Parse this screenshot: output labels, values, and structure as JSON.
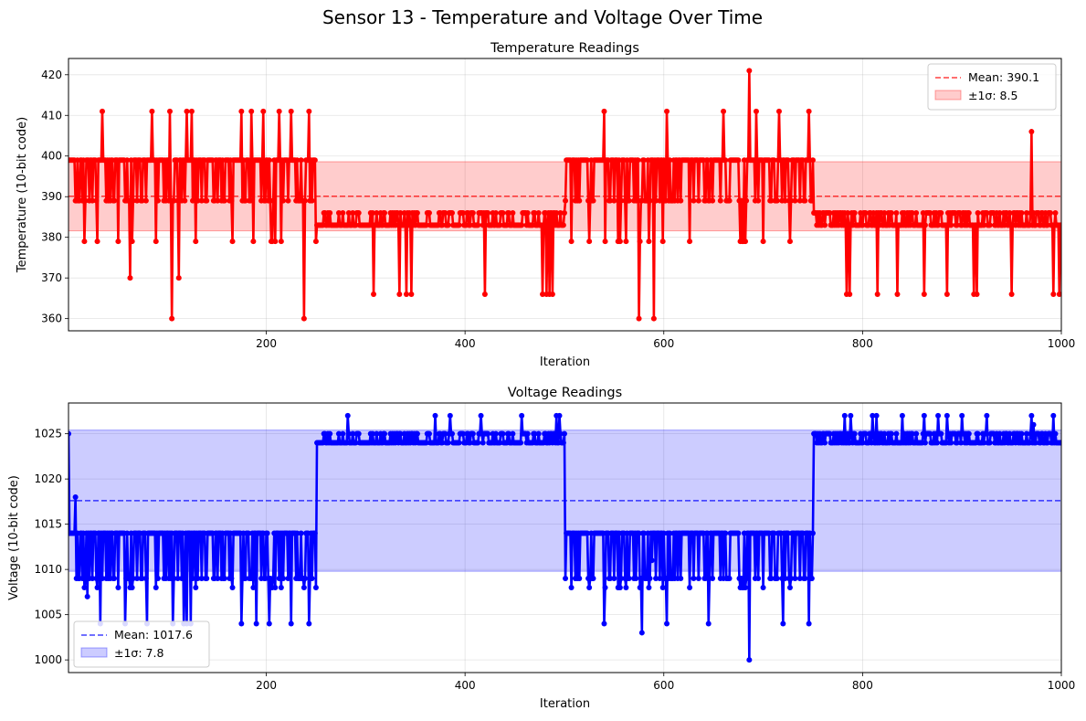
{
  "figure": {
    "title": "Sensor 13 - Temperature and Voltage Over Time"
  },
  "chart_data": [
    {
      "type": "line",
      "title": "Temperature Readings",
      "xlabel": "Iteration",
      "ylabel": "Temperature (10-bit code)",
      "xlim": [
        1,
        1000
      ],
      "ylim": [
        357,
        424
      ],
      "xticks": [
        200,
        400,
        600,
        800,
        1000
      ],
      "yticks": [
        360,
        370,
        380,
        390,
        400,
        410,
        420
      ],
      "grid": true,
      "legend_position": "top-right",
      "color": "#ff0000",
      "mean": 390.1,
      "std": 8.5,
      "legend": [
        "Mean: 390.1",
        "±1σ: 8.5"
      ],
      "series": [
        {
          "segments": [
            {
              "x_range": [
                1,
                250
              ],
              "base": 389,
              "high": 399,
              "low": 379,
              "extremes": [
                [
                  35,
                  411
                ],
                [
                  63,
                  370
                ],
                [
                  85,
                  411
                ],
                [
                  103,
                  411
                ],
                [
                  105,
                  360
                ],
                [
                  112,
                  370
                ],
                [
                  120,
                  411
                ],
                [
                  125,
                  411
                ],
                [
                  175,
                  411
                ],
                [
                  185,
                  411
                ],
                [
                  197,
                  411
                ],
                [
                  213,
                  411
                ],
                [
                  225,
                  411
                ],
                [
                  238,
                  360
                ],
                [
                  243,
                  411
                ]
              ]
            },
            {
              "x_range": [
                251,
                500
              ],
              "base": 386,
              "high": 386,
              "low": 383,
              "extremes": [
                [
                  308,
                  366
                ],
                [
                  334,
                  366
                ],
                [
                  341,
                  366
                ],
                [
                  346,
                  366
                ],
                [
                  420,
                  366
                ],
                [
                  478,
                  366
                ],
                [
                  482,
                  366
                ],
                [
                  485,
                  366
                ],
                [
                  488,
                  366
                ]
              ]
            },
            {
              "x_range": [
                501,
                750
              ],
              "base": 389,
              "high": 399,
              "low": 379,
              "extremes": [
                [
                  540,
                  411
                ],
                [
                  575,
                  360
                ],
                [
                  590,
                  360
                ],
                [
                  603,
                  411
                ],
                [
                  660,
                  411
                ],
                [
                  686,
                  421
                ],
                [
                  693,
                  411
                ],
                [
                  716,
                  411
                ],
                [
                  746,
                  411
                ]
              ]
            },
            {
              "x_range": [
                751,
                1000
              ],
              "base": 386,
              "high": 386,
              "low": 383,
              "extremes": [
                [
                  784,
                  366
                ],
                [
                  787,
                  366
                ],
                [
                  815,
                  366
                ],
                [
                  835,
                  366
                ],
                [
                  862,
                  366
                ],
                [
                  885,
                  366
                ],
                [
                  912,
                  366
                ],
                [
                  915,
                  366
                ],
                [
                  950,
                  366
                ],
                [
                  970,
                  406
                ],
                [
                  992,
                  366
                ],
                [
                  998,
                  366
                ]
              ]
            }
          ]
        }
      ]
    },
    {
      "type": "line",
      "title": "Voltage Readings",
      "xlabel": "Iteration",
      "ylabel": "Voltage (10-bit code)",
      "xlim": [
        1,
        1000
      ],
      "ylim": [
        998.6,
        1028.4
      ],
      "xticks": [
        200,
        400,
        600,
        800,
        1000
      ],
      "yticks": [
        1000,
        1005,
        1010,
        1015,
        1020,
        1025
      ],
      "grid": true,
      "legend_position": "bottom-left",
      "color": "#0000ff",
      "mean": 1017.6,
      "std": 7.8,
      "legend": [
        "Mean: 1017.6",
        "±1σ: 7.8"
      ],
      "series": [
        {
          "segments": [
            {
              "x_range": [
                1,
                250
              ],
              "base": 1009,
              "high": 1014,
              "low": 1008,
              "extremes": [
                [
                  1,
                  1025
                ],
                [
                  8,
                  1018
                ],
                [
                  20,
                  1007
                ],
                [
                  33,
                  1004
                ],
                [
                  58,
                  1004
                ],
                [
                  80,
                  1004
                ],
                [
                  106,
                  1004
                ],
                [
                  117,
                  1004
                ],
                [
                  120,
                  1004
                ],
                [
                  124,
                  1004
                ],
                [
                  175,
                  1004
                ],
                [
                  190,
                  1004
                ],
                [
                  203,
                  1004
                ],
                [
                  225,
                  1004
                ],
                [
                  243,
                  1004
                ]
              ]
            },
            {
              "x_range": [
                251,
                500
              ],
              "base": 1025,
              "high": 1025,
              "low": 1024,
              "extremes": [
                [
                  282,
                  1027
                ],
                [
                  370,
                  1027
                ],
                [
                  385,
                  1027
                ],
                [
                  416,
                  1027
                ],
                [
                  457,
                  1027
                ],
                [
                  492,
                  1027
                ],
                [
                  495,
                  1027
                ]
              ]
            },
            {
              "x_range": [
                501,
                750
              ],
              "base": 1009,
              "high": 1014,
              "low": 1008,
              "extremes": [
                [
                  540,
                  1004
                ],
                [
                  578,
                  1003
                ],
                [
                  588,
                  1011
                ],
                [
                  603,
                  1004
                ],
                [
                  645,
                  1004
                ],
                [
                  686,
                  1000
                ],
                [
                  720,
                  1004
                ],
                [
                  746,
                  1004
                ]
              ]
            },
            {
              "x_range": [
                751,
                1000
              ],
              "base": 1025,
              "high": 1025,
              "low": 1024,
              "extremes": [
                [
                  782,
                  1027
                ],
                [
                  788,
                  1027
                ],
                [
                  810,
                  1027
                ],
                [
                  814,
                  1027
                ],
                [
                  840,
                  1027
                ],
                [
                  862,
                  1027
                ],
                [
                  876,
                  1027
                ],
                [
                  885,
                  1027
                ],
                [
                  900,
                  1027
                ],
                [
                  925,
                  1027
                ],
                [
                  970,
                  1027
                ],
                [
                  972,
                  1026
                ],
                [
                  992,
                  1027
                ]
              ]
            }
          ]
        }
      ]
    }
  ]
}
